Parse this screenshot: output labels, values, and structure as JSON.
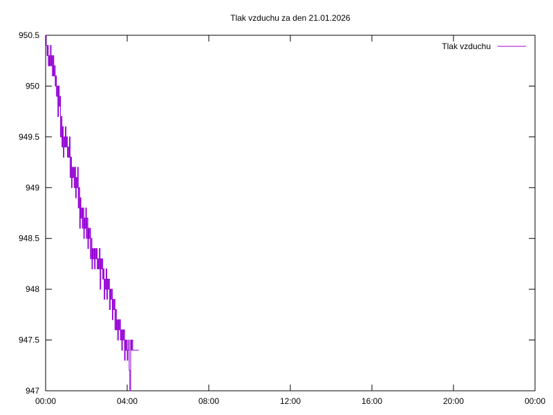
{
  "chart_data": {
    "type": "line",
    "title": "Tlak vzduchu za den 21.01.2026",
    "xlabel": "",
    "ylabel": "",
    "x_unit": "hours",
    "xlim": [
      0,
      24
    ],
    "ylim": [
      947,
      950.5
    ],
    "x_ticks": [
      {
        "value": 0,
        "label": "00:00"
      },
      {
        "value": 4,
        "label": "04:00"
      },
      {
        "value": 8,
        "label": "08:00"
      },
      {
        "value": 12,
        "label": "12:00"
      },
      {
        "value": 16,
        "label": "16:00"
      },
      {
        "value": 20,
        "label": "20:00"
      },
      {
        "value": 24,
        "label": "00:00"
      }
    ],
    "y_ticks": [
      {
        "value": 947,
        "label": "947"
      },
      {
        "value": 947.5,
        "label": "947.5"
      },
      {
        "value": 948,
        "label": "948"
      },
      {
        "value": 948.5,
        "label": "948.5"
      },
      {
        "value": 949,
        "label": "949"
      },
      {
        "value": 949.5,
        "label": "949.5"
      },
      {
        "value": 950,
        "label": "950"
      },
      {
        "value": 950.5,
        "label": "950.5"
      }
    ],
    "grid": false,
    "legend_position": "top-right",
    "series": [
      {
        "name": "Tlak vzduchu",
        "color": "#9400d3",
        "x": [
          0.0,
          0.03,
          0.07,
          0.1,
          0.13,
          0.17,
          0.2,
          0.23,
          0.27,
          0.3,
          0.33,
          0.37,
          0.4,
          0.43,
          0.47,
          0.5,
          0.53,
          0.57,
          0.6,
          0.63,
          0.67,
          0.7,
          0.73,
          0.77,
          0.8,
          0.83,
          0.87,
          0.9,
          0.93,
          0.97,
          1.0,
          1.03,
          1.07,
          1.1,
          1.13,
          1.17,
          1.2,
          1.23,
          1.27,
          1.3,
          1.33,
          1.37,
          1.4,
          1.43,
          1.47,
          1.5,
          1.53,
          1.57,
          1.6,
          1.63,
          1.67,
          1.7,
          1.73,
          1.77,
          1.8,
          1.83,
          1.87,
          1.9,
          1.93,
          1.97,
          2.0,
          2.03,
          2.07,
          2.1,
          2.13,
          2.17,
          2.2,
          2.23,
          2.27,
          2.3,
          2.33,
          2.37,
          2.4,
          2.43,
          2.47,
          2.5,
          2.53,
          2.57,
          2.6,
          2.63,
          2.67,
          2.7,
          2.73,
          2.77,
          2.8,
          2.83,
          2.87,
          2.9,
          2.93,
          2.97,
          3.0,
          3.03,
          3.07,
          3.1,
          3.13,
          3.17,
          3.2,
          3.23,
          3.27,
          3.3,
          3.33,
          3.37,
          3.4,
          3.43,
          3.47,
          3.5,
          3.53,
          3.57,
          3.6,
          3.63,
          3.67,
          3.7,
          3.73,
          3.77,
          3.8,
          3.83,
          3.87,
          3.9,
          3.93,
          3.97,
          4.0,
          4.03,
          4.07,
          4.1,
          4.13,
          4.17,
          4.2,
          4.23,
          4.27,
          4.3,
          4.33,
          4.37,
          4.4,
          4.43,
          4.47,
          4.5,
          4.53,
          4.57
        ],
        "y": [
          950.5,
          950.4,
          950.3,
          950.4,
          950.2,
          950.3,
          950.2,
          950.4,
          950.2,
          950.3,
          950.1,
          950.3,
          950.1,
          950.2,
          950.0,
          950.1,
          949.9,
          950.0,
          949.7,
          950.0,
          949.8,
          949.9,
          949.5,
          949.7,
          949.4,
          949.6,
          949.3,
          949.5,
          949.4,
          949.6,
          949.4,
          949.5,
          949.3,
          949.4,
          949.3,
          949.5,
          949.1,
          949.3,
          949.0,
          949.2,
          949.1,
          949.2,
          949.0,
          949.2,
          948.9,
          949.1,
          949.0,
          949.2,
          948.8,
          949.0,
          948.6,
          948.9,
          948.7,
          948.8,
          948.6,
          948.8,
          948.5,
          948.7,
          948.6,
          948.8,
          948.5,
          948.7,
          948.4,
          948.6,
          948.5,
          948.6,
          948.3,
          948.5,
          948.2,
          948.4,
          948.3,
          948.4,
          948.2,
          948.4,
          948.3,
          948.4,
          948.2,
          948.3,
          948.2,
          948.4,
          948.0,
          948.3,
          948.2,
          948.3,
          948.1,
          948.2,
          947.9,
          948.1,
          948.0,
          948.2,
          947.9,
          948.1,
          948.0,
          948.1,
          947.8,
          948.0,
          947.9,
          948.0,
          947.7,
          947.9,
          947.8,
          947.9,
          947.6,
          947.8,
          947.6,
          947.7,
          947.5,
          947.7,
          947.6,
          947.7,
          947.5,
          947.6,
          947.4,
          947.6,
          947.5,
          947.6,
          947.3,
          947.5,
          947.4,
          947.5,
          947.3,
          947.4,
          947.5,
          947.2,
          947.0,
          947.5,
          947.4,
          947.5,
          947.4,
          947.4,
          947.4,
          947.4,
          947.4,
          947.4,
          947.4,
          947.4,
          947.4,
          947.4
        ]
      }
    ]
  }
}
